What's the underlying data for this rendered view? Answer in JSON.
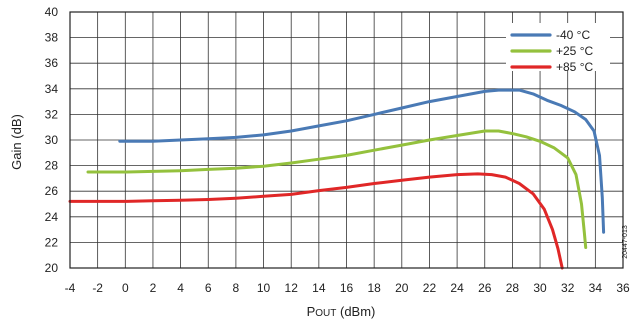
{
  "chart_data": {
    "type": "line",
    "xlabel": "POUT (dBm)",
    "xlabel_main": "P",
    "xlabel_sub": "OUT",
    "xlabel_rest": " (dBm)",
    "ylabel": "Gain (dB)",
    "xlim": [
      -4,
      36
    ],
    "ylim": [
      20,
      40
    ],
    "xticks": [
      -4,
      -2,
      0,
      2,
      4,
      6,
      8,
      10,
      12,
      14,
      16,
      18,
      20,
      22,
      24,
      26,
      28,
      30,
      32,
      34,
      36
    ],
    "yticks": [
      20,
      22,
      24,
      26,
      28,
      30,
      32,
      34,
      36,
      38,
      40
    ],
    "grid": true,
    "legend_position": "top-right",
    "figure_id": "20447-013",
    "series": [
      {
        "name": "-40 °C",
        "color": "#4a7ab5",
        "x": [
          -0.4,
          2,
          4,
          6,
          8,
          10,
          12,
          14,
          16,
          18,
          20,
          22,
          24,
          26,
          27,
          28.5,
          29.5,
          30.5,
          31.5,
          32.5,
          33.3,
          33.9,
          34.3,
          34.5,
          34.6
        ],
        "y": [
          29.9,
          29.9,
          30.0,
          30.1,
          30.2,
          30.4,
          30.7,
          31.1,
          31.5,
          32.0,
          32.5,
          33.0,
          33.4,
          33.8,
          33.9,
          33.9,
          33.6,
          33.1,
          32.7,
          32.2,
          31.6,
          30.7,
          28.8,
          25.5,
          22.8
        ]
      },
      {
        "name": "+25 °C",
        "color": "#94c13d",
        "x": [
          -2.7,
          0,
          2,
          4,
          6,
          8,
          10,
          12,
          14,
          16,
          18,
          20,
          22,
          24,
          26,
          27,
          28,
          29,
          30,
          31,
          32,
          32.6,
          33.0,
          33.2,
          33.3
        ],
        "y": [
          27.5,
          27.5,
          27.55,
          27.6,
          27.7,
          27.8,
          27.95,
          28.2,
          28.5,
          28.8,
          29.2,
          29.6,
          30.0,
          30.35,
          30.7,
          30.7,
          30.5,
          30.25,
          29.9,
          29.4,
          28.6,
          27.3,
          25.0,
          22.8,
          21.6
        ]
      },
      {
        "name": "+85 °C",
        "color": "#e02727",
        "x": [
          -4,
          -2,
          0,
          2,
          4,
          6,
          8,
          10,
          12,
          14,
          16,
          18,
          20,
          22,
          24,
          25.5,
          26.5,
          27.5,
          28.5,
          29.5,
          30.3,
          30.9,
          31.3,
          31.6
        ],
        "y": [
          25.2,
          25.2,
          25.2,
          25.25,
          25.3,
          25.35,
          25.45,
          25.6,
          25.75,
          26.05,
          26.3,
          26.6,
          26.85,
          27.1,
          27.3,
          27.35,
          27.3,
          27.1,
          26.6,
          25.8,
          24.6,
          23.0,
          21.5,
          20.0
        ]
      }
    ]
  }
}
